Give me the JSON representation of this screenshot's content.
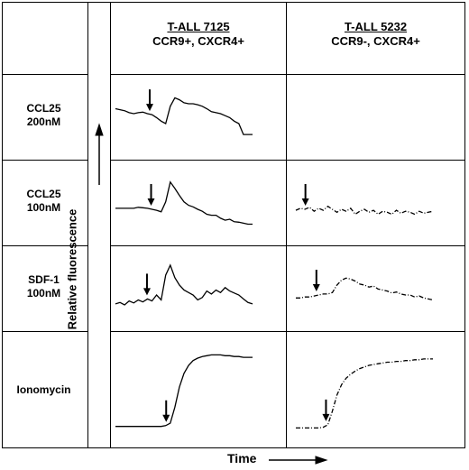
{
  "columns": [
    {
      "title": "T-ALL 7125",
      "subtitle": "CCR9+, CXCR4+"
    },
    {
      "title": "T-ALL 5232",
      "subtitle": "CCR9-, CXCR4+"
    }
  ],
  "rows": [
    {
      "line1": "CCL25",
      "line2": "200nM"
    },
    {
      "line1": "CCL25",
      "line2": "100nM"
    },
    {
      "line1": "SDF-1",
      "line2": "100nM"
    },
    {
      "line1": "Ionomycin",
      "line2": ""
    }
  ],
  "axes": {
    "y_label": "Relative fluorescence",
    "x_label": "Time"
  },
  "chart_data": {
    "type": "line",
    "panels": [
      {
        "row": "CCL25 200nM",
        "column": "T-ALL 7125",
        "style": "solid",
        "arrow": 0.25,
        "y": [
          0.7,
          0.68,
          0.66,
          0.62,
          0.6,
          0.62,
          0.63,
          0.6,
          0.58,
          0.52,
          0.45,
          0.4,
          0.75,
          0.92,
          0.88,
          0.82,
          0.8,
          0.8,
          0.78,
          0.75,
          0.7,
          0.64,
          0.62,
          0.6,
          0.56,
          0.52,
          0.45,
          0.4,
          0.18,
          0.18,
          0.18
        ]
      },
      {
        "row": "CCL25 200nM",
        "column": "T-ALL 5232",
        "style": "none"
      },
      {
        "row": "CCL25 100nM",
        "column": "T-ALL 7125",
        "style": "solid",
        "arrow": 0.26,
        "y": [
          0.42,
          0.42,
          0.42,
          0.42,
          0.42,
          0.44,
          0.43,
          0.42,
          0.4,
          0.38,
          0.35,
          0.55,
          0.95,
          0.82,
          0.68,
          0.55,
          0.48,
          0.45,
          0.4,
          0.36,
          0.3,
          0.28,
          0.28,
          0.22,
          0.18,
          0.2,
          0.15,
          0.14,
          0.12,
          0.1,
          0.1
        ]
      },
      {
        "row": "CCL25 100nM",
        "column": "T-ALL 5232",
        "style": "dashed",
        "arrow": 0.07,
        "y": [
          0.38,
          0.42,
          0.4,
          0.44,
          0.36,
          0.42,
          0.38,
          0.46,
          0.4,
          0.34,
          0.4,
          0.36,
          0.42,
          0.3,
          0.36,
          0.4,
          0.34,
          0.38,
          0.3,
          0.36,
          0.34,
          0.3,
          0.38,
          0.32,
          0.36,
          0.34,
          0.3,
          0.36,
          0.32,
          0.34,
          0.36
        ]
      },
      {
        "row": "SDF-1 100nM",
        "column": "T-ALL 7125",
        "style": "solid",
        "arrow": 0.23,
        "y": [
          0.22,
          0.25,
          0.2,
          0.28,
          0.24,
          0.3,
          0.26,
          0.32,
          0.28,
          0.4,
          0.3,
          0.8,
          1.0,
          0.75,
          0.6,
          0.5,
          0.45,
          0.4,
          0.3,
          0.35,
          0.48,
          0.42,
          0.5,
          0.45,
          0.55,
          0.48,
          0.44,
          0.4,
          0.32,
          0.25,
          0.22
        ]
      },
      {
        "row": "SDF-1 100nM",
        "column": "T-ALL 5232",
        "style": "dashed",
        "arrow": 0.15,
        "y": [
          0.34,
          0.34,
          0.36,
          0.36,
          0.38,
          0.4,
          0.42,
          0.42,
          0.45,
          0.6,
          0.7,
          0.74,
          0.72,
          0.68,
          0.62,
          0.6,
          0.56,
          0.58,
          0.52,
          0.5,
          0.48,
          0.44,
          0.46,
          0.42,
          0.4,
          0.4,
          0.36,
          0.38,
          0.34,
          0.32,
          0.3
        ]
      },
      {
        "row": "Ionomycin",
        "column": "T-ALL 7125",
        "style": "solid",
        "arrow": 0.37,
        "y": [
          0.06,
          0.06,
          0.06,
          0.06,
          0.06,
          0.06,
          0.06,
          0.06,
          0.06,
          0.06,
          0.06,
          0.07,
          0.1,
          0.3,
          0.55,
          0.72,
          0.82,
          0.88,
          0.91,
          0.93,
          0.94,
          0.95,
          0.95,
          0.95,
          0.94,
          0.94,
          0.93,
          0.93,
          0.92,
          0.92,
          0.92
        ]
      },
      {
        "row": "Ionomycin",
        "column": "T-ALL 5232",
        "style": "dashed",
        "arrow": 0.22,
        "y": [
          0.04,
          0.04,
          0.04,
          0.04,
          0.04,
          0.04,
          0.05,
          0.08,
          0.25,
          0.45,
          0.58,
          0.66,
          0.71,
          0.75,
          0.78,
          0.8,
          0.82,
          0.83,
          0.84,
          0.85,
          0.86,
          0.86,
          0.87,
          0.87,
          0.88,
          0.88,
          0.89,
          0.89,
          0.9,
          0.9,
          0.9
        ]
      }
    ]
  }
}
